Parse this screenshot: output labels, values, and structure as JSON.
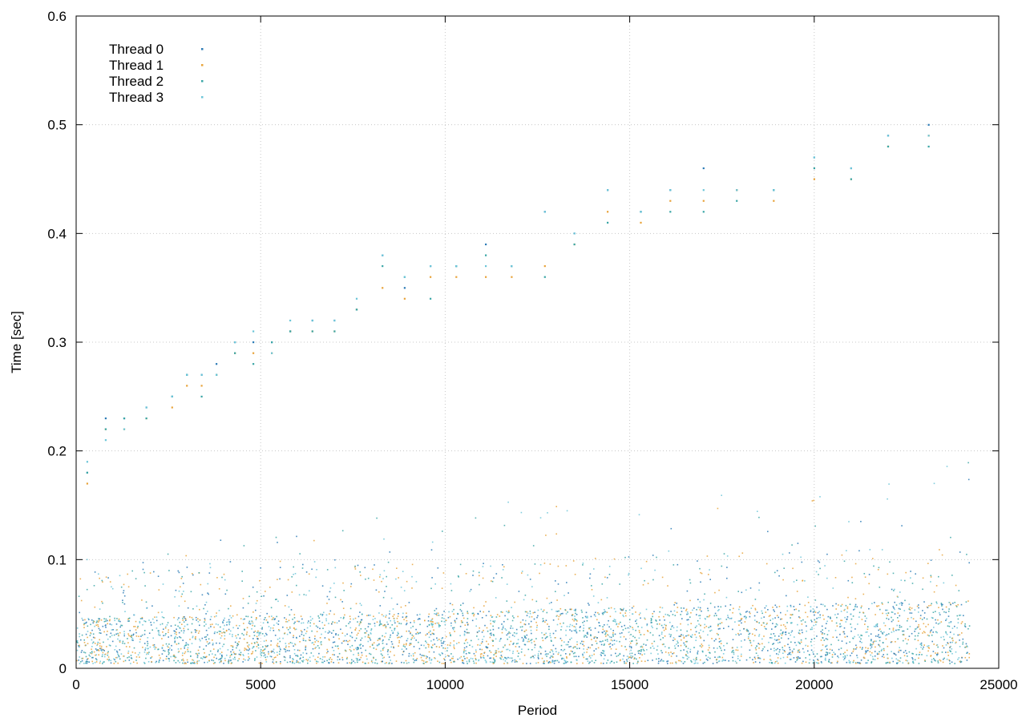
{
  "chart_data": {
    "type": "scatter",
    "title": "",
    "xlabel": "Period",
    "ylabel": "Time [sec]",
    "xlim": [
      0,
      25000
    ],
    "ylim": [
      0,
      0.6
    ],
    "x_ticks": [
      "0",
      "5000",
      "10000",
      "15000",
      "20000",
      "25000"
    ],
    "y_ticks": [
      "0",
      "0.1",
      "0.2",
      "0.3",
      "0.4",
      "0.5",
      "0.6"
    ],
    "grid": true,
    "legend_position": "top-left",
    "series": [
      {
        "name": "Thread 0",
        "color": "#2c7bb6",
        "points": [
          [
            300,
            0.18
          ],
          [
            800,
            0.23
          ],
          [
            1300,
            0.23
          ],
          [
            1900,
            0.24
          ],
          [
            2600,
            0.25
          ],
          [
            3000,
            0.27
          ],
          [
            3400,
            0.27
          ],
          [
            3800,
            0.28
          ],
          [
            4300,
            0.3
          ],
          [
            4800,
            0.3
          ],
          [
            5300,
            0.3
          ],
          [
            5800,
            0.31
          ],
          [
            6400,
            0.32
          ],
          [
            7000,
            0.32
          ],
          [
            7600,
            0.33
          ],
          [
            8300,
            0.38
          ],
          [
            8900,
            0.35
          ],
          [
            9600,
            0.37
          ],
          [
            10300,
            0.37
          ],
          [
            11100,
            0.39
          ],
          [
            11800,
            0.37
          ],
          [
            12700,
            0.42
          ],
          [
            13500,
            0.4
          ],
          [
            14400,
            0.44
          ],
          [
            15300,
            0.42
          ],
          [
            16100,
            0.44
          ],
          [
            17000,
            0.46
          ],
          [
            17900,
            0.44
          ],
          [
            18900,
            0.44
          ],
          [
            20000,
            0.47
          ],
          [
            21000,
            0.46
          ],
          [
            22000,
            0.49
          ],
          [
            23100,
            0.5
          ]
        ]
      },
      {
        "name": "Thread 1",
        "color": "#e8a33a",
        "points": [
          [
            300,
            0.17
          ],
          [
            800,
            0.22
          ],
          [
            1300,
            0.22
          ],
          [
            1900,
            0.23
          ],
          [
            2600,
            0.24
          ],
          [
            3000,
            0.26
          ],
          [
            3400,
            0.26
          ],
          [
            3800,
            0.27
          ],
          [
            4300,
            0.29
          ],
          [
            4800,
            0.29
          ],
          [
            5300,
            0.29
          ],
          [
            5800,
            0.31
          ],
          [
            6400,
            0.31
          ],
          [
            7000,
            0.31
          ],
          [
            7600,
            0.33
          ],
          [
            8300,
            0.35
          ],
          [
            8900,
            0.34
          ],
          [
            9600,
            0.36
          ],
          [
            10300,
            0.36
          ],
          [
            11100,
            0.36
          ],
          [
            11800,
            0.36
          ],
          [
            12700,
            0.37
          ],
          [
            13500,
            0.39
          ],
          [
            14400,
            0.42
          ],
          [
            15300,
            0.41
          ],
          [
            16100,
            0.43
          ],
          [
            17000,
            0.43
          ],
          [
            17900,
            0.44
          ],
          [
            18900,
            0.43
          ],
          [
            20000,
            0.45
          ],
          [
            21000,
            0.45
          ],
          [
            22000,
            0.48
          ],
          [
            23100,
            0.49
          ]
        ]
      },
      {
        "name": "Thread 2",
        "color": "#3aa6a6",
        "points": [
          [
            300,
            0.18
          ],
          [
            800,
            0.22
          ],
          [
            1300,
            0.23
          ],
          [
            1900,
            0.23
          ],
          [
            2600,
            0.25
          ],
          [
            3000,
            0.27
          ],
          [
            3400,
            0.25
          ],
          [
            3800,
            0.27
          ],
          [
            4300,
            0.29
          ],
          [
            4800,
            0.28
          ],
          [
            5300,
            0.3
          ],
          [
            5800,
            0.31
          ],
          [
            6400,
            0.31
          ],
          [
            7000,
            0.31
          ],
          [
            7600,
            0.33
          ],
          [
            8300,
            0.37
          ],
          [
            8900,
            0.36
          ],
          [
            9600,
            0.34
          ],
          [
            10300,
            0.37
          ],
          [
            11100,
            0.38
          ],
          [
            11800,
            0.37
          ],
          [
            12700,
            0.36
          ],
          [
            13500,
            0.39
          ],
          [
            14400,
            0.41
          ],
          [
            15300,
            0.42
          ],
          [
            16100,
            0.42
          ],
          [
            17000,
            0.42
          ],
          [
            17900,
            0.43
          ],
          [
            18900,
            0.44
          ],
          [
            20000,
            0.46
          ],
          [
            21000,
            0.45
          ],
          [
            22000,
            0.48
          ],
          [
            23100,
            0.48
          ]
        ]
      },
      {
        "name": "Thread 3",
        "color": "#6cc5d8",
        "points": [
          [
            300,
            0.19
          ],
          [
            800,
            0.21
          ],
          [
            1300,
            0.22
          ],
          [
            1900,
            0.24
          ],
          [
            2600,
            0.25
          ],
          [
            3000,
            0.27
          ],
          [
            3400,
            0.27
          ],
          [
            3800,
            0.27
          ],
          [
            4300,
            0.3
          ],
          [
            4800,
            0.31
          ],
          [
            5300,
            0.29
          ],
          [
            5800,
            0.32
          ],
          [
            6400,
            0.32
          ],
          [
            7000,
            0.32
          ],
          [
            7600,
            0.34
          ],
          [
            8300,
            0.38
          ],
          [
            8900,
            0.36
          ],
          [
            9600,
            0.37
          ],
          [
            10300,
            0.37
          ],
          [
            11100,
            0.37
          ],
          [
            11800,
            0.37
          ],
          [
            12700,
            0.42
          ],
          [
            13500,
            0.4
          ],
          [
            14400,
            0.44
          ],
          [
            15300,
            0.42
          ],
          [
            16100,
            0.44
          ],
          [
            17000,
            0.44
          ],
          [
            17900,
            0.44
          ],
          [
            18900,
            0.44
          ],
          [
            20000,
            0.47
          ],
          [
            21000,
            0.46
          ],
          [
            22000,
            0.49
          ],
          [
            23100,
            0.49
          ]
        ]
      }
    ],
    "dense_band": {
      "x_range": [
        0,
        24200
      ],
      "y_typical_range": [
        0.005,
        0.06
      ],
      "y_sparse_max": 0.2
    }
  }
}
